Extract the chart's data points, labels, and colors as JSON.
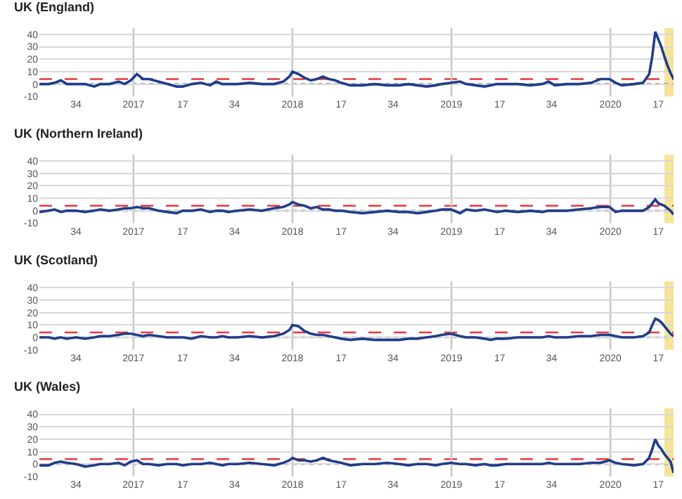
{
  "chart_data": [
    {
      "type": "line",
      "title": "UK (England)",
      "x": [
        "2016-05-30",
        "2016-06-20",
        "2016-07-04",
        "2016-07-18",
        "2016-08-01",
        "2016-08-22",
        "2016-09-12",
        "2016-10-03",
        "2016-10-17",
        "2016-11-07",
        "2016-11-28",
        "2016-12-12",
        "2016-12-26",
        "2017-01-09",
        "2017-01-23",
        "2017-02-06",
        "2017-02-27",
        "2017-03-20",
        "2017-04-10",
        "2017-04-24",
        "2017-05-15",
        "2017-06-05",
        "2017-06-26",
        "2017-07-10",
        "2017-07-24",
        "2017-08-07",
        "2017-08-28",
        "2017-09-25",
        "2017-10-23",
        "2017-11-20",
        "2017-12-11",
        "2017-12-25",
        "2018-01-01",
        "2018-01-15",
        "2018-01-29",
        "2018-02-12",
        "2018-02-26",
        "2018-03-12",
        "2018-03-26",
        "2018-04-09",
        "2018-04-23",
        "2018-05-14",
        "2018-06-11",
        "2018-07-09",
        "2018-08-06",
        "2018-09-03",
        "2018-09-24",
        "2018-10-15",
        "2018-11-05",
        "2018-11-26",
        "2018-12-10",
        "2018-12-31",
        "2019-01-21",
        "2019-02-04",
        "2019-02-25",
        "2019-03-18",
        "2019-04-01",
        "2019-04-15",
        "2019-05-06",
        "2019-06-03",
        "2019-07-01",
        "2019-07-29",
        "2019-08-12",
        "2019-08-26",
        "2019-09-23",
        "2019-10-21",
        "2019-11-18",
        "2019-12-09",
        "2019-12-30",
        "2020-01-13",
        "2020-01-27",
        "2020-02-24",
        "2020-03-16",
        "2020-03-30",
        "2020-04-06",
        "2020-04-13",
        "2020-04-20",
        "2020-04-27",
        "2020-05-04",
        "2020-05-11",
        "2020-05-18",
        "2020-05-25"
      ],
      "series": [
        {
          "color": "#1f3d8a",
          "values": [
            0,
            0,
            1,
            3,
            0,
            0,
            0,
            -2,
            0,
            0,
            2,
            0,
            3,
            8,
            4,
            4,
            2,
            0,
            -2,
            -2,
            0,
            1,
            -1,
            2,
            0,
            0,
            0,
            1,
            0,
            0,
            2,
            6,
            10,
            8,
            5,
            3,
            4,
            6,
            4,
            3,
            1,
            -1,
            -1,
            0,
            -1,
            -1,
            0,
            -1,
            -2,
            -1,
            0,
            1,
            2,
            0,
            -1,
            -2,
            -1,
            0,
            0,
            0,
            -1,
            0,
            2,
            -1,
            0,
            0,
            1,
            4,
            4,
            1,
            -1,
            0,
            1,
            8,
            22,
            42,
            36,
            30,
            22,
            15,
            9,
            4
          ]
        }
      ],
      "xlim": [
        "2016-05-30",
        "2020-05-25"
      ],
      "xticks": [
        {
          "value": "2016-08-22",
          "label": "34"
        },
        {
          "value": "2017-01-01",
          "label": "2017"
        },
        {
          "value": "2017-04-24",
          "label": "17"
        },
        {
          "value": "2017-08-21",
          "label": "34"
        },
        {
          "value": "2018-01-01",
          "label": "2018"
        },
        {
          "value": "2018-04-23",
          "label": "17"
        },
        {
          "value": "2018-08-20",
          "label": "34"
        },
        {
          "value": "2019-01-01",
          "label": "2019"
        },
        {
          "value": "2019-04-22",
          "label": "17"
        },
        {
          "value": "2019-08-19",
          "label": "34"
        },
        {
          "value": "2020-01-01",
          "label": "2020"
        },
        {
          "value": "2020-04-20",
          "label": "17"
        }
      ],
      "ylim": [
        -10,
        45
      ],
      "yticks": [
        -10,
        0,
        10,
        20,
        30,
        40
      ],
      "grid": "y",
      "ref_lines": [
        {
          "axis": "y",
          "value": 0,
          "label": null,
          "color": "#808080",
          "line_style": "dotted"
        },
        {
          "axis": "y",
          "value": 4,
          "label": null,
          "color": "#e8383d",
          "line_style": "dashed"
        },
        {
          "axis": "x",
          "value": "2017-01-01",
          "label": null,
          "color": "#c8c8c8",
          "line_style": "solid"
        },
        {
          "axis": "x",
          "value": "2018-01-01",
          "label": null,
          "color": "#c8c8c8",
          "line_style": "solid"
        },
        {
          "axis": "x",
          "value": "2019-01-01",
          "label": null,
          "color": "#c8c8c8",
          "line_style": "solid"
        },
        {
          "axis": "x",
          "value": "2020-01-01",
          "label": null,
          "color": "#c8c8c8",
          "line_style": "solid"
        }
      ],
      "bands": [
        {
          "axis": "x",
          "from": "2020-05-04",
          "to": "2020-05-25",
          "label": null,
          "color": "#f5e39a"
        }
      ]
    },
    {
      "type": "line",
      "title": "UK (Northern Ireland)",
      "x": [
        "2016-05-30",
        "2016-06-20",
        "2016-07-04",
        "2016-07-18",
        "2016-08-01",
        "2016-08-22",
        "2016-09-12",
        "2016-10-03",
        "2016-10-17",
        "2016-11-07",
        "2016-11-28",
        "2016-12-12",
        "2016-12-26",
        "2017-01-09",
        "2017-01-23",
        "2017-02-06",
        "2017-02-27",
        "2017-03-20",
        "2017-04-10",
        "2017-04-24",
        "2017-05-15",
        "2017-06-05",
        "2017-06-26",
        "2017-07-10",
        "2017-07-24",
        "2017-08-07",
        "2017-08-28",
        "2017-09-25",
        "2017-10-23",
        "2017-11-20",
        "2017-12-11",
        "2017-12-25",
        "2018-01-01",
        "2018-01-15",
        "2018-01-29",
        "2018-02-12",
        "2018-02-26",
        "2018-03-12",
        "2018-03-26",
        "2018-04-09",
        "2018-04-23",
        "2018-05-14",
        "2018-06-11",
        "2018-07-09",
        "2018-08-06",
        "2018-09-03",
        "2018-09-24",
        "2018-10-15",
        "2018-11-05",
        "2018-11-26",
        "2018-12-10",
        "2018-12-31",
        "2019-01-21",
        "2019-02-04",
        "2019-02-25",
        "2019-03-18",
        "2019-04-01",
        "2019-04-15",
        "2019-05-06",
        "2019-06-03",
        "2019-07-01",
        "2019-07-29",
        "2019-08-12",
        "2019-08-26",
        "2019-09-23",
        "2019-10-21",
        "2019-11-18",
        "2019-12-09",
        "2019-12-30",
        "2020-01-13",
        "2020-01-27",
        "2020-02-24",
        "2020-03-16",
        "2020-03-30",
        "2020-04-06",
        "2020-04-13",
        "2020-04-20",
        "2020-04-27",
        "2020-05-04",
        "2020-05-11",
        "2020-05-18",
        "2020-05-25"
      ],
      "series": [
        {
          "color": "#1f3d8a",
          "values": [
            -1,
            0,
            1,
            -1,
            0,
            0,
            -1,
            0,
            1,
            0,
            1,
            2,
            2,
            3,
            2,
            2,
            0,
            -1,
            -2,
            0,
            0,
            1,
            -1,
            0,
            0,
            -1,
            0,
            1,
            0,
            2,
            3,
            5,
            7,
            5,
            4,
            2,
            3,
            1,
            1,
            0,
            0,
            -1,
            -2,
            -1,
            0,
            -1,
            -1,
            -2,
            -1,
            0,
            1,
            1,
            -2,
            1,
            0,
            1,
            0,
            -1,
            0,
            -1,
            0,
            -1,
            0,
            0,
            0,
            1,
            2,
            3,
            3,
            -1,
            0,
            0,
            0,
            3,
            6,
            9,
            6,
            5,
            4,
            2,
            0,
            -3
          ]
        }
      ],
      "xlim": [
        "2016-05-30",
        "2020-05-25"
      ],
      "xticks": [
        {
          "value": "2016-08-22",
          "label": "34"
        },
        {
          "value": "2017-01-01",
          "label": "2017"
        },
        {
          "value": "2017-04-24",
          "label": "17"
        },
        {
          "value": "2017-08-21",
          "label": "34"
        },
        {
          "value": "2018-01-01",
          "label": "2018"
        },
        {
          "value": "2018-04-23",
          "label": "17"
        },
        {
          "value": "2018-08-20",
          "label": "34"
        },
        {
          "value": "2019-01-01",
          "label": "2019"
        },
        {
          "value": "2019-04-22",
          "label": "17"
        },
        {
          "value": "2019-08-19",
          "label": "34"
        },
        {
          "value": "2020-01-01",
          "label": "2020"
        },
        {
          "value": "2020-04-20",
          "label": "17"
        }
      ],
      "ylim": [
        -10,
        45
      ],
      "yticks": [
        -10,
        0,
        10,
        20,
        30,
        40
      ],
      "grid": "y",
      "ref_lines": [
        {
          "axis": "y",
          "value": 0,
          "label": null,
          "color": "#808080",
          "line_style": "dotted"
        },
        {
          "axis": "y",
          "value": 4,
          "label": null,
          "color": "#e8383d",
          "line_style": "dashed"
        },
        {
          "axis": "x",
          "value": "2017-01-01",
          "label": null,
          "color": "#c8c8c8",
          "line_style": "solid"
        },
        {
          "axis": "x",
          "value": "2018-01-01",
          "label": null,
          "color": "#c8c8c8",
          "line_style": "solid"
        },
        {
          "axis": "x",
          "value": "2019-01-01",
          "label": null,
          "color": "#c8c8c8",
          "line_style": "solid"
        },
        {
          "axis": "x",
          "value": "2020-01-01",
          "label": null,
          "color": "#c8c8c8",
          "line_style": "solid"
        }
      ],
      "bands": [
        {
          "axis": "x",
          "from": "2020-05-04",
          "to": "2020-05-25",
          "label": null,
          "color": "#f5e39a"
        }
      ]
    },
    {
      "type": "line",
      "title": "UK (Scotland)",
      "x": [
        "2016-05-30",
        "2016-06-20",
        "2016-07-04",
        "2016-07-18",
        "2016-08-01",
        "2016-08-22",
        "2016-09-12",
        "2016-10-03",
        "2016-10-17",
        "2016-11-07",
        "2016-11-28",
        "2016-12-12",
        "2016-12-26",
        "2017-01-09",
        "2017-01-23",
        "2017-02-06",
        "2017-02-27",
        "2017-03-20",
        "2017-04-10",
        "2017-04-24",
        "2017-05-15",
        "2017-06-05",
        "2017-06-26",
        "2017-07-10",
        "2017-07-24",
        "2017-08-07",
        "2017-08-28",
        "2017-09-25",
        "2017-10-23",
        "2017-11-20",
        "2017-12-11",
        "2017-12-25",
        "2018-01-01",
        "2018-01-15",
        "2018-01-29",
        "2018-02-12",
        "2018-02-26",
        "2018-03-12",
        "2018-03-26",
        "2018-04-09",
        "2018-04-23",
        "2018-05-14",
        "2018-06-11",
        "2018-07-09",
        "2018-08-06",
        "2018-09-03",
        "2018-09-24",
        "2018-10-15",
        "2018-11-05",
        "2018-11-26",
        "2018-12-10",
        "2018-12-31",
        "2019-01-21",
        "2019-02-04",
        "2019-02-25",
        "2019-03-18",
        "2019-04-01",
        "2019-04-15",
        "2019-05-06",
        "2019-06-03",
        "2019-07-01",
        "2019-07-29",
        "2019-08-12",
        "2019-08-26",
        "2019-09-23",
        "2019-10-21",
        "2019-11-18",
        "2019-12-09",
        "2019-12-30",
        "2020-01-13",
        "2020-01-27",
        "2020-02-24",
        "2020-03-16",
        "2020-03-30",
        "2020-04-06",
        "2020-04-13",
        "2020-04-20",
        "2020-04-27",
        "2020-05-04",
        "2020-05-11",
        "2020-05-18",
        "2020-05-25"
      ],
      "series": [
        {
          "color": "#1f3d8a",
          "values": [
            0,
            0,
            -1,
            0,
            -1,
            0,
            -1,
            0,
            1,
            1,
            2,
            3,
            3,
            2,
            1,
            2,
            1,
            0,
            0,
            0,
            -1,
            1,
            0,
            0,
            1,
            0,
            0,
            1,
            0,
            1,
            3,
            6,
            10,
            9,
            5,
            3,
            2,
            2,
            1,
            0,
            -1,
            -2,
            -1,
            -2,
            -2,
            -2,
            -1,
            -1,
            0,
            1,
            2,
            3,
            1,
            0,
            0,
            -1,
            -2,
            -1,
            -1,
            0,
            0,
            0,
            1,
            0,
            0,
            1,
            1,
            2,
            2,
            1,
            0,
            0,
            1,
            4,
            10,
            15,
            14,
            12,
            9,
            6,
            3,
            1
          ]
        }
      ],
      "xlim": [
        "2016-05-30",
        "2020-05-25"
      ],
      "xticks": [
        {
          "value": "2016-08-22",
          "label": "34"
        },
        {
          "value": "2017-01-01",
          "label": "2017"
        },
        {
          "value": "2017-04-24",
          "label": "17"
        },
        {
          "value": "2017-08-21",
          "label": "34"
        },
        {
          "value": "2018-01-01",
          "label": "2018"
        },
        {
          "value": "2018-04-23",
          "label": "17"
        },
        {
          "value": "2018-08-20",
          "label": "34"
        },
        {
          "value": "2019-01-01",
          "label": "2019"
        },
        {
          "value": "2019-04-22",
          "label": "17"
        },
        {
          "value": "2019-08-19",
          "label": "34"
        },
        {
          "value": "2020-01-01",
          "label": "2020"
        },
        {
          "value": "2020-04-20",
          "label": "17"
        }
      ],
      "ylim": [
        -10,
        45
      ],
      "yticks": [
        -10,
        0,
        10,
        20,
        30,
        40
      ],
      "grid": "y",
      "ref_lines": [
        {
          "axis": "y",
          "value": 0,
          "label": null,
          "color": "#808080",
          "line_style": "dotted"
        },
        {
          "axis": "y",
          "value": 4,
          "label": null,
          "color": "#e8383d",
          "line_style": "dashed"
        },
        {
          "axis": "x",
          "value": "2017-01-01",
          "label": null,
          "color": "#c8c8c8",
          "line_style": "solid"
        },
        {
          "axis": "x",
          "value": "2018-01-01",
          "label": null,
          "color": "#c8c8c8",
          "line_style": "solid"
        },
        {
          "axis": "x",
          "value": "2019-01-01",
          "label": null,
          "color": "#c8c8c8",
          "line_style": "solid"
        },
        {
          "axis": "x",
          "value": "2020-01-01",
          "label": null,
          "color": "#c8c8c8",
          "line_style": "solid"
        }
      ],
      "bands": [
        {
          "axis": "x",
          "from": "2020-05-04",
          "to": "2020-05-25",
          "label": null,
          "color": "#f5e39a"
        }
      ]
    },
    {
      "type": "line",
      "title": "UK (Wales)",
      "x": [
        "2016-05-30",
        "2016-06-20",
        "2016-07-04",
        "2016-07-18",
        "2016-08-01",
        "2016-08-22",
        "2016-09-12",
        "2016-10-03",
        "2016-10-17",
        "2016-11-07",
        "2016-11-28",
        "2016-12-12",
        "2016-12-26",
        "2017-01-09",
        "2017-01-23",
        "2017-02-06",
        "2017-02-27",
        "2017-03-20",
        "2017-04-10",
        "2017-04-24",
        "2017-05-15",
        "2017-06-05",
        "2017-06-26",
        "2017-07-10",
        "2017-07-24",
        "2017-08-07",
        "2017-08-28",
        "2017-09-25",
        "2017-10-23",
        "2017-11-20",
        "2017-12-11",
        "2017-12-25",
        "2018-01-01",
        "2018-01-15",
        "2018-01-29",
        "2018-02-12",
        "2018-02-26",
        "2018-03-12",
        "2018-03-26",
        "2018-04-09",
        "2018-04-23",
        "2018-05-14",
        "2018-06-11",
        "2018-07-09",
        "2018-08-06",
        "2018-09-03",
        "2018-09-24",
        "2018-10-15",
        "2018-11-05",
        "2018-11-26",
        "2018-12-10",
        "2018-12-31",
        "2019-01-21",
        "2019-02-04",
        "2019-02-25",
        "2019-03-18",
        "2019-04-01",
        "2019-04-15",
        "2019-05-06",
        "2019-06-03",
        "2019-07-01",
        "2019-07-29",
        "2019-08-12",
        "2019-08-26",
        "2019-09-23",
        "2019-10-21",
        "2019-11-18",
        "2019-12-09",
        "2019-12-30",
        "2020-01-13",
        "2020-01-27",
        "2020-02-24",
        "2020-03-16",
        "2020-03-30",
        "2020-04-06",
        "2020-04-13",
        "2020-04-20",
        "2020-04-27",
        "2020-05-04",
        "2020-05-11",
        "2020-05-18",
        "2020-05-25"
      ],
      "series": [
        {
          "color": "#1f3d8a",
          "values": [
            -1,
            -1,
            1,
            2,
            1,
            0,
            -2,
            -1,
            0,
            0,
            1,
            -1,
            2,
            3,
            0,
            0,
            -1,
            0,
            0,
            -1,
            0,
            0,
            1,
            0,
            -1,
            0,
            0,
            1,
            0,
            -1,
            1,
            3,
            5,
            3,
            3,
            2,
            3,
            5,
            3,
            2,
            1,
            -1,
            0,
            0,
            1,
            0,
            -1,
            0,
            0,
            -1,
            0,
            1,
            0,
            0,
            -1,
            0,
            -1,
            -1,
            0,
            0,
            0,
            0,
            1,
            0,
            0,
            0,
            1,
            1,
            3,
            1,
            0,
            -1,
            0,
            5,
            12,
            20,
            15,
            12,
            8,
            5,
            2,
            -7
          ]
        }
      ],
      "xlim": [
        "2016-05-30",
        "2020-05-25"
      ],
      "xticks": [
        {
          "value": "2016-08-22",
          "label": "34"
        },
        {
          "value": "2017-01-01",
          "label": "2017"
        },
        {
          "value": "2017-04-24",
          "label": "17"
        },
        {
          "value": "2017-08-21",
          "label": "34"
        },
        {
          "value": "2018-01-01",
          "label": "2018"
        },
        {
          "value": "2018-04-23",
          "label": "17"
        },
        {
          "value": "2018-08-20",
          "label": "34"
        },
        {
          "value": "2019-01-01",
          "label": "2019"
        },
        {
          "value": "2019-04-22",
          "label": "17"
        },
        {
          "value": "2019-08-19",
          "label": "34"
        },
        {
          "value": "2020-01-01",
          "label": "2020"
        },
        {
          "value": "2020-04-20",
          "label": "17"
        }
      ],
      "ylim": [
        -10,
        45
      ],
      "yticks": [
        -10,
        0,
        10,
        20,
        30,
        40
      ],
      "grid": "y",
      "ref_lines": [
        {
          "axis": "y",
          "value": 0,
          "label": null,
          "color": "#808080",
          "line_style": "dotted"
        },
        {
          "axis": "y",
          "value": 4,
          "label": null,
          "color": "#e8383d",
          "line_style": "dashed"
        },
        {
          "axis": "x",
          "value": "2017-01-01",
          "label": null,
          "color": "#c8c8c8",
          "line_style": "solid"
        },
        {
          "axis": "x",
          "value": "2018-01-01",
          "label": null,
          "color": "#c8c8c8",
          "line_style": "solid"
        },
        {
          "axis": "x",
          "value": "2019-01-01",
          "label": null,
          "color": "#c8c8c8",
          "line_style": "solid"
        },
        {
          "axis": "x",
          "value": "2020-01-01",
          "label": null,
          "color": "#c8c8c8",
          "line_style": "solid"
        }
      ],
      "bands": [
        {
          "axis": "x",
          "from": "2020-05-04",
          "to": "2020-05-25",
          "label": null,
          "color": "#f5e39a"
        }
      ]
    }
  ]
}
